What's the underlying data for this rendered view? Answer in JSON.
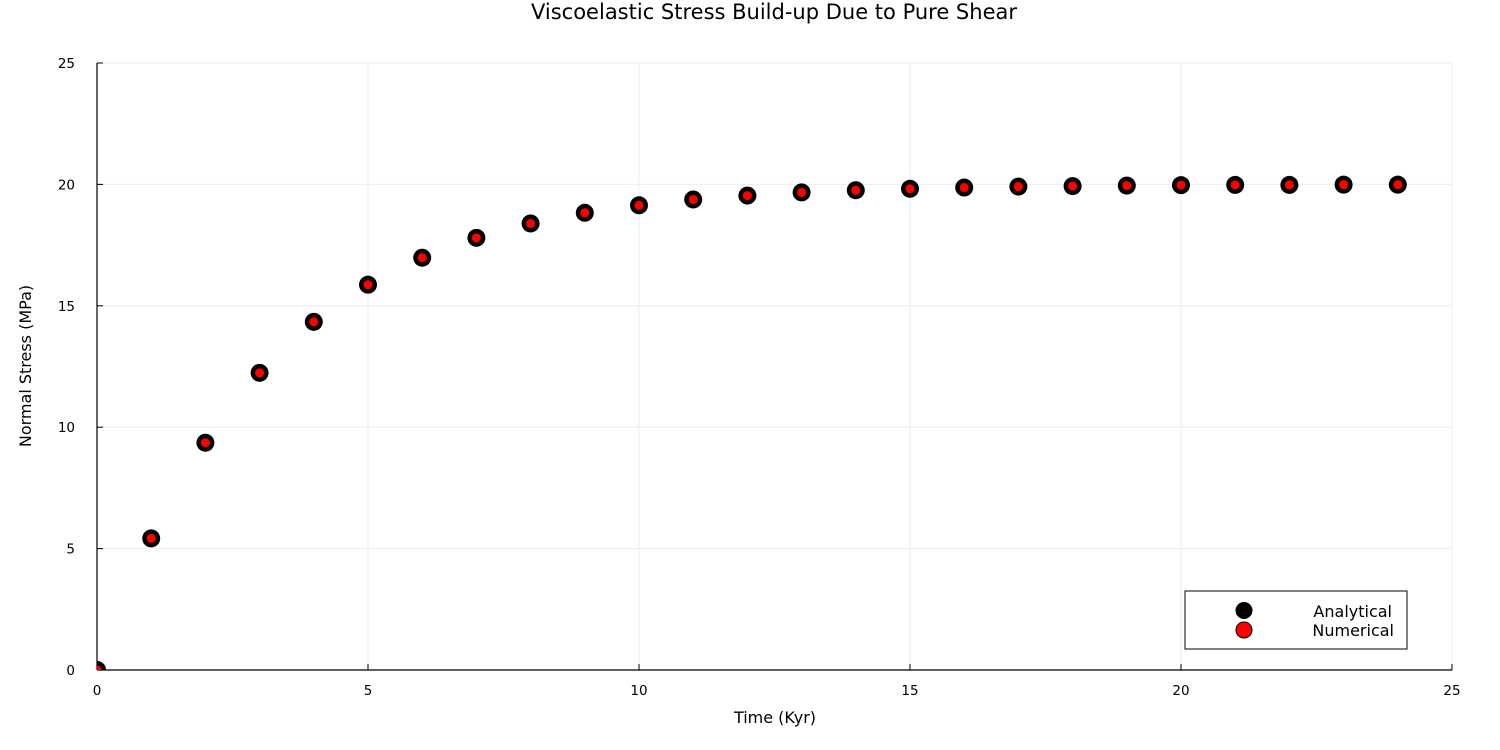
{
  "chart_data": {
    "type": "scatter",
    "title": "Viscoelastic Stress Build-up Due to Pure Shear",
    "xlabel": "Time (Kyr)",
    "ylabel": "Normal Stress (MPa)",
    "xlim": [
      0,
      25
    ],
    "ylim": [
      0,
      25
    ],
    "xticks": [
      0,
      5,
      10,
      15,
      20,
      25
    ],
    "yticks": [
      0,
      5,
      10,
      15,
      20,
      25
    ],
    "grid": true,
    "legend_position": "bottom-right",
    "x": [
      0,
      1,
      2,
      3,
      4,
      5,
      6,
      7,
      8,
      9,
      10,
      11,
      12,
      13,
      14,
      15,
      16,
      17,
      18,
      19,
      20,
      21,
      22,
      23,
      24
    ],
    "series": [
      {
        "name": "Analytical",
        "color": "#000000",
        "marker_size": 9,
        "values": [
          0,
          5.42,
          9.36,
          12.24,
          14.34,
          15.87,
          16.98,
          17.8,
          18.39,
          18.83,
          19.14,
          19.38,
          19.54,
          19.67,
          19.76,
          19.82,
          19.87,
          19.91,
          19.93,
          19.95,
          19.97,
          19.98,
          19.98,
          19.99,
          19.99
        ]
      },
      {
        "name": "Numerical",
        "color": "#ff0000",
        "marker_size": 4.5,
        "values": [
          0,
          5.42,
          9.36,
          12.24,
          14.34,
          15.87,
          16.98,
          17.8,
          18.39,
          18.83,
          19.14,
          19.38,
          19.54,
          19.67,
          19.76,
          19.82,
          19.87,
          19.91,
          19.93,
          19.95,
          19.97,
          19.98,
          19.98,
          19.99,
          19.99
        ]
      }
    ]
  },
  "legend": {
    "items": [
      {
        "label": "Analytical",
        "color": "#000000"
      },
      {
        "label": "Numerical",
        "color": "#ff0000"
      }
    ]
  }
}
